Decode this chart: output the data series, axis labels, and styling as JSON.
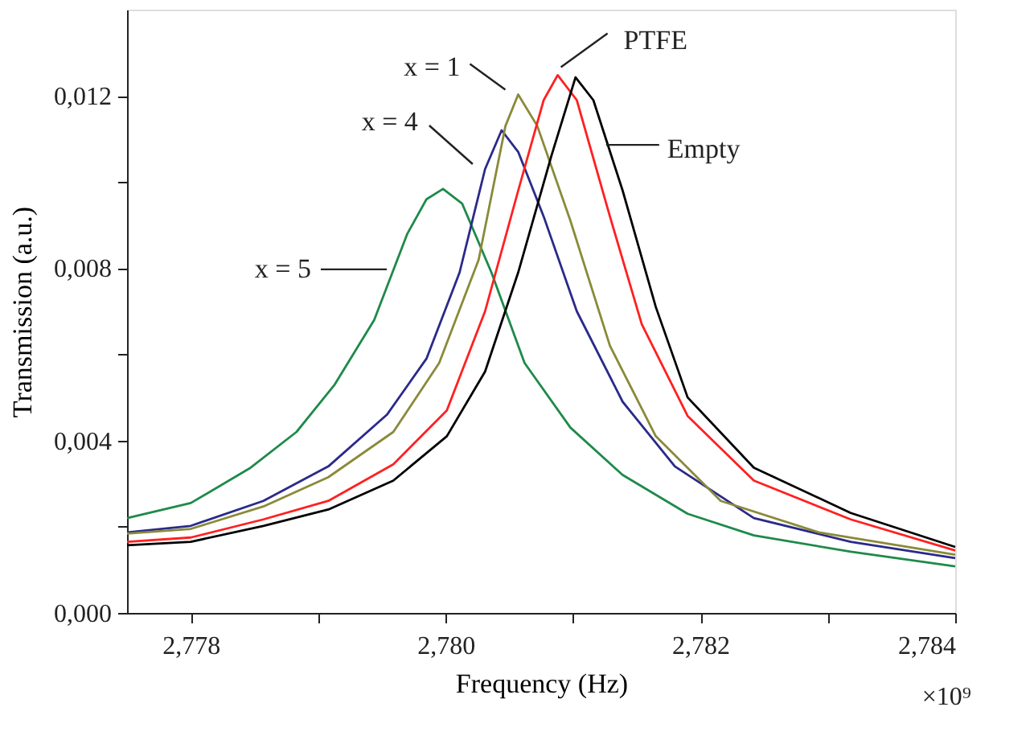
{
  "chart_data": {
    "type": "line",
    "xlabel": "Frequency (Hz)",
    "ylabel": "Transmission (a.u.)",
    "xlim": [
      2.7775,
      2.784
    ],
    "ylim": [
      0,
      0.014
    ],
    "xticks": [
      {
        "value": 2.778,
        "label": "2,778"
      },
      {
        "value": 2.779,
        "label": null
      },
      {
        "value": 2.78,
        "label": "2,780"
      },
      {
        "value": 2.781,
        "label": null
      },
      {
        "value": 2.782,
        "label": "2,782"
      },
      {
        "value": 2.783,
        "label": null
      },
      {
        "value": 2.784,
        "label": "2,784"
      }
    ],
    "yticks": [
      {
        "value": 0,
        "label": "0,000"
      },
      {
        "value": 0.002,
        "label": null
      },
      {
        "value": 0.004,
        "label": "0,004"
      },
      {
        "value": 0.006,
        "label": null
      },
      {
        "value": 0.008,
        "label": "0,008"
      },
      {
        "value": 0.01,
        "label": null
      },
      {
        "value": 0.012,
        "label": "0,012"
      }
    ],
    "grid": false,
    "marker": "none",
    "line_style": "solid",
    "annotations": [
      "×10⁹"
    ],
    "series": [
      {
        "name": "x = 5",
        "color": "#1e8a4a",
        "x": [
          2.7775,
          2.778,
          2.77847,
          2.77883,
          2.77913,
          2.77944,
          2.7797,
          2.77985,
          2.77998,
          2.78013,
          2.78036,
          2.78062,
          2.78098,
          2.78139,
          2.7819,
          2.78242,
          2.78318,
          2.784
        ],
        "values": [
          0.0022,
          0.00255,
          0.00337,
          0.0042,
          0.0053,
          0.0068,
          0.0088,
          0.0096,
          0.00984,
          0.0095,
          0.0079,
          0.0058,
          0.0043,
          0.0032,
          0.0023,
          0.0018,
          0.00142,
          0.00108
        ]
      },
      {
        "name": "x = 4",
        "color": "#2a2a8a",
        "x": [
          2.7775,
          2.778,
          2.77857,
          2.77908,
          2.77954,
          2.77985,
          2.78011,
          2.78031,
          2.78044,
          2.78057,
          2.78077,
          2.78103,
          2.78139,
          2.7818,
          2.78242,
          2.78318,
          2.784
        ],
        "values": [
          0.00187,
          0.00202,
          0.0026,
          0.0034,
          0.0046,
          0.0059,
          0.0079,
          0.0103,
          0.0112,
          0.0107,
          0.0092,
          0.007,
          0.0049,
          0.0034,
          0.0022,
          0.00165,
          0.00127
        ]
      },
      {
        "name": "x = 1",
        "color": "#8a8a3a",
        "x": [
          2.7775,
          2.778,
          2.77857,
          2.77908,
          2.77959,
          2.77995,
          2.78026,
          2.78047,
          2.78057,
          2.78072,
          2.78098,
          2.78129,
          2.78165,
          2.78216,
          2.78293,
          2.784
        ],
        "values": [
          0.00184,
          0.00195,
          0.00247,
          0.00315,
          0.0042,
          0.0058,
          0.0082,
          0.0113,
          0.01203,
          0.0113,
          0.0091,
          0.0062,
          0.0041,
          0.0026,
          0.00187,
          0.00135
        ]
      },
      {
        "name": "PTFE",
        "color": "#ff2020",
        "x": [
          2.7775,
          2.778,
          2.77857,
          2.77908,
          2.77959,
          2.78001,
          2.78031,
          2.78057,
          2.78077,
          2.78088,
          2.78103,
          2.78129,
          2.78154,
          2.7819,
          2.78242,
          2.78318,
          2.784
        ],
        "values": [
          0.00165,
          0.00175,
          0.00217,
          0.0026,
          0.00345,
          0.0047,
          0.007,
          0.0098,
          0.0119,
          0.01248,
          0.0119,
          0.0092,
          0.0067,
          0.00457,
          0.00307,
          0.00217,
          0.00145
        ]
      },
      {
        "name": "Empty",
        "color": "#000000",
        "x": [
          2.7775,
          2.778,
          2.77857,
          2.77908,
          2.77959,
          2.78001,
          2.78031,
          2.78057,
          2.78083,
          2.78102,
          2.78116,
          2.78139,
          2.78165,
          2.7819,
          2.78242,
          2.78318,
          2.784
        ],
        "values": [
          0.00157,
          0.00165,
          0.00202,
          0.0024,
          0.00307,
          0.0041,
          0.0056,
          0.0079,
          0.0106,
          0.01243,
          0.0119,
          0.0098,
          0.0071,
          0.005,
          0.00337,
          0.00232,
          0.00153
        ]
      }
    ]
  }
}
